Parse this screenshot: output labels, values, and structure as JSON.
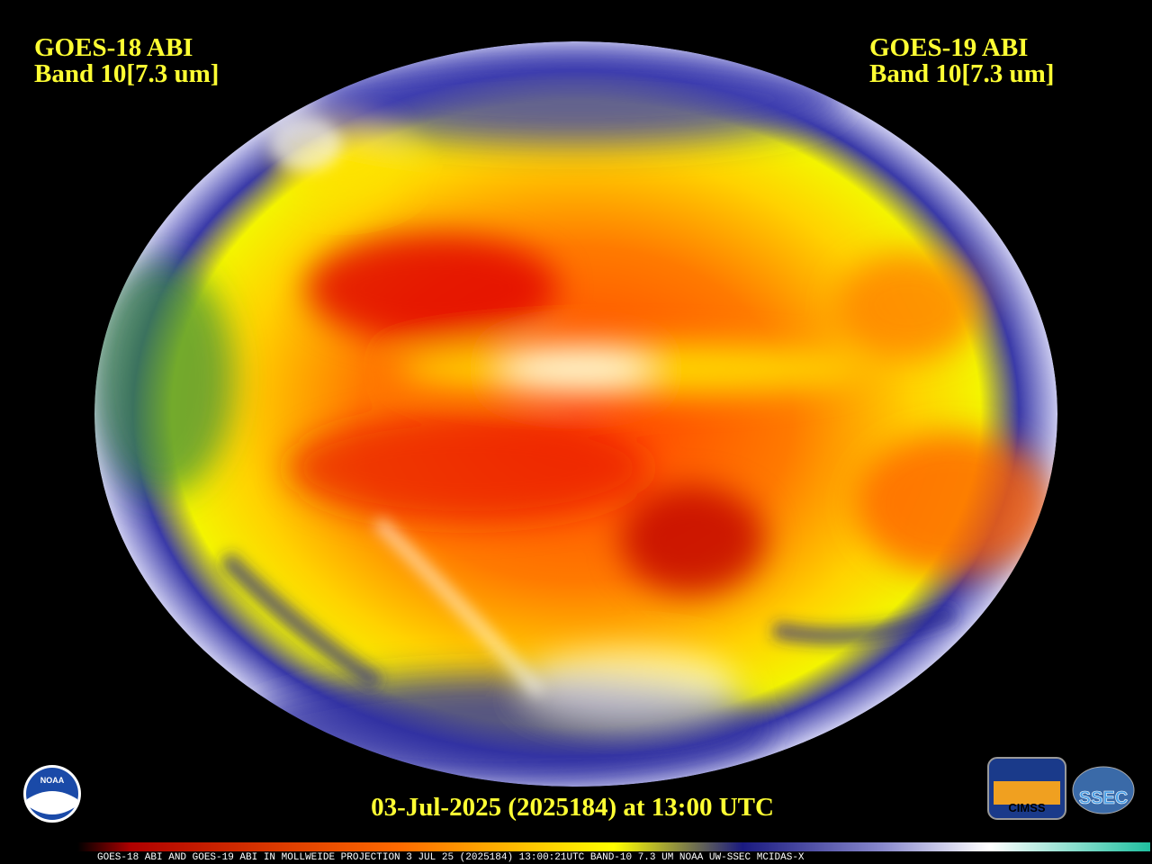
{
  "header": {
    "left": {
      "satellite": "GOES-18 ABI",
      "band": "Band 10[7.3 um]"
    },
    "right": {
      "satellite": "GOES-19 ABI",
      "band": "Band 10[7.3 um]"
    }
  },
  "timestamp": "03-Jul-2025 (2025184) at 13:00 UTC",
  "footer": "GOES-18 ABI AND GOES-19 ABI IN MOLLWEIDE PROJECTION 3 JUL 25 (2025184) 13:00:21UTC BAND-10 7.3 UM NOAA UW-SSEC MCIDAS-X",
  "logos": {
    "noaa": "NOAA",
    "cimss": "CIMSS",
    "ssec": "SSEC"
  }
}
